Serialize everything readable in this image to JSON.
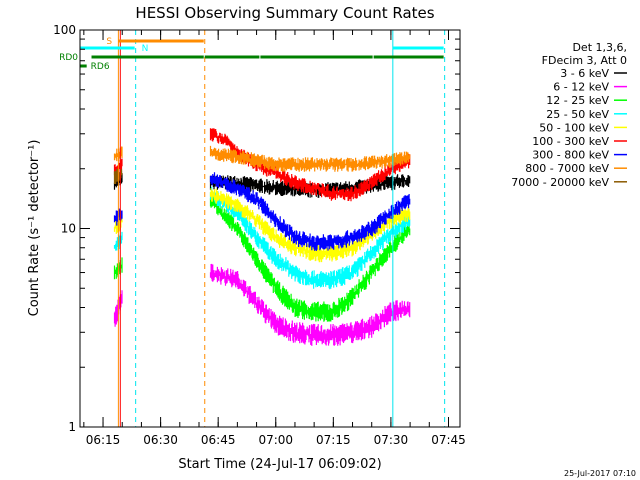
{
  "page": {
    "timestamp": "25-Jul-2017 07:10"
  },
  "chart_data": {
    "type": "line",
    "title": "HESSI Observing Summary Count Rates",
    "xlabel": "Start Time (24-Jul-17 06:09:02)",
    "ylabel": "Count Rate (s⁻¹ detector⁻¹)",
    "y_scale": "log",
    "ylim": [
      1,
      100
    ],
    "xlim": [
      "06:09",
      "07:48"
    ],
    "y_ticks": [
      {
        "value": 1,
        "label": "1"
      },
      {
        "value": 10,
        "label": "10"
      },
      {
        "value": 100,
        "label": "100"
      }
    ],
    "x_ticks": [
      {
        "value": "06:15",
        "label": "06:15"
      },
      {
        "value": "06:30",
        "label": "06:30"
      },
      {
        "value": "06:45",
        "label": "06:45"
      },
      {
        "value": "07:00",
        "label": "07:00"
      },
      {
        "value": "07:15",
        "label": "07:15"
      },
      {
        "value": "07:30",
        "label": "07:30"
      },
      {
        "value": "07:45",
        "label": "07:45"
      }
    ],
    "legend": {
      "placement": "right",
      "header": [
        "Det 1,3,6,",
        "FDecim 3, Att 0"
      ],
      "entries": [
        {
          "label": "3 - 6 keV",
          "color": "#000000"
        },
        {
          "label": "6 - 12 keV",
          "color": "#ff00ff"
        },
        {
          "label": "12 - 25 keV",
          "color": "#00ff00"
        },
        {
          "label": "25 - 50 keV",
          "color": "#00ffff"
        },
        {
          "label": "50 - 100 keV",
          "color": "#ffff00"
        },
        {
          "label": "100 - 300 keV",
          "color": "#ff0000"
        },
        {
          "label": "300 - 800 keV",
          "color": "#0000ff"
        },
        {
          "label": "800 - 7000 keV",
          "color": "#ff8c00"
        },
        {
          "label": "7000 - 20000 keV",
          "color": "#8b5a00"
        }
      ]
    },
    "segments": [
      {
        "start": "06:18",
        "end": "06:20"
      },
      {
        "start": "06:43",
        "end": "07:35"
      }
    ],
    "series": [
      {
        "band": "3 - 6 keV",
        "color": "#000000",
        "points": [
          [
            "06:18",
            17
          ],
          [
            "06:20",
            18
          ],
          [
            "06:43",
            17
          ],
          [
            "06:50",
            17
          ],
          [
            "06:55",
            16.5
          ],
          [
            "07:00",
            16
          ],
          [
            "07:10",
            15.5
          ],
          [
            "07:20",
            16
          ],
          [
            "07:30",
            17
          ],
          [
            "07:35",
            17.5
          ]
        ]
      },
      {
        "band": "6 - 12 keV",
        "color": "#ff00ff",
        "points": [
          [
            "06:18",
            3.5
          ],
          [
            "06:20",
            4.5
          ],
          [
            "06:43",
            6
          ],
          [
            "06:50",
            5.5
          ],
          [
            "06:55",
            4.2
          ],
          [
            "07:00",
            3.3
          ],
          [
            "07:05",
            3.0
          ],
          [
            "07:10",
            2.9
          ],
          [
            "07:15",
            2.9
          ],
          [
            "07:20",
            3.0
          ],
          [
            "07:25",
            3.2
          ],
          [
            "07:30",
            3.8
          ],
          [
            "07:35",
            4.0
          ]
        ]
      },
      {
        "band": "12 - 25 keV",
        "color": "#00ff00",
        "points": [
          [
            "06:18",
            6
          ],
          [
            "06:20",
            6.5
          ],
          [
            "06:43",
            14
          ],
          [
            "06:46",
            12
          ],
          [
            "06:50",
            10
          ],
          [
            "06:55",
            7
          ],
          [
            "07:00",
            5
          ],
          [
            "07:05",
            4
          ],
          [
            "07:10",
            3.8
          ],
          [
            "07:15",
            3.8
          ],
          [
            "07:20",
            4.5
          ],
          [
            "07:25",
            6
          ],
          [
            "07:30",
            8
          ],
          [
            "07:35",
            10
          ]
        ]
      },
      {
        "band": "25 - 50 keV",
        "color": "#00ffff",
        "points": [
          [
            "06:18",
            8
          ],
          [
            "06:20",
            9
          ],
          [
            "06:43",
            15
          ],
          [
            "06:50",
            12
          ],
          [
            "06:55",
            9
          ],
          [
            "07:00",
            7
          ],
          [
            "07:05",
            6
          ],
          [
            "07:10",
            5.5
          ],
          [
            "07:15",
            5.5
          ],
          [
            "07:20",
            6
          ],
          [
            "07:25",
            7.5
          ],
          [
            "07:30",
            9.5
          ],
          [
            "07:35",
            11
          ]
        ]
      },
      {
        "band": "50 - 100 keV",
        "color": "#ffff00",
        "points": [
          [
            "06:18",
            10
          ],
          [
            "06:20",
            11
          ],
          [
            "06:43",
            15
          ],
          [
            "06:50",
            13
          ],
          [
            "06:55",
            11
          ],
          [
            "07:00",
            9
          ],
          [
            "07:05",
            8
          ],
          [
            "07:10",
            7.5
          ],
          [
            "07:15",
            7.5
          ],
          [
            "07:20",
            8
          ],
          [
            "07:25",
            9.5
          ],
          [
            "07:30",
            11
          ],
          [
            "07:35",
            12
          ]
        ]
      },
      {
        "band": "100 - 300 keV",
        "color": "#ff0000",
        "points": [
          [
            "06:18",
            20
          ],
          [
            "06:20",
            21
          ],
          [
            "06:43",
            30
          ],
          [
            "06:47",
            28
          ],
          [
            "06:50",
            24
          ],
          [
            "06:55",
            21
          ],
          [
            "07:00",
            19
          ],
          [
            "07:05",
            17
          ],
          [
            "07:10",
            16
          ],
          [
            "07:15",
            15
          ],
          [
            "07:20",
            15
          ],
          [
            "07:25",
            17
          ],
          [
            "07:30",
            20
          ],
          [
            "07:35",
            22
          ]
        ]
      },
      {
        "band": "300 - 800 keV",
        "color": "#0000ff",
        "points": [
          [
            "06:18",
            11
          ],
          [
            "06:20",
            12
          ],
          [
            "06:43",
            18
          ],
          [
            "06:50",
            16
          ],
          [
            "06:55",
            14
          ],
          [
            "07:00",
            11
          ],
          [
            "07:05",
            9
          ],
          [
            "07:10",
            8.5
          ],
          [
            "07:15",
            8.5
          ],
          [
            "07:20",
            9
          ],
          [
            "07:25",
            10
          ],
          [
            "07:30",
            12
          ],
          [
            "07:35",
            14
          ]
        ]
      },
      {
        "band": "800 - 7000 keV",
        "color": "#ff8c00",
        "points": [
          [
            "06:18",
            23
          ],
          [
            "06:20",
            24
          ],
          [
            "06:43",
            24
          ],
          [
            "06:50",
            23
          ],
          [
            "06:55",
            22
          ],
          [
            "07:00",
            21
          ],
          [
            "07:10",
            21
          ],
          [
            "07:20",
            21
          ],
          [
            "07:30",
            22
          ],
          [
            "07:35",
            23
          ]
        ]
      },
      {
        "band": "7000 - 20000 keV",
        "color": "#8b5a00",
        "points": [
          [
            "06:18",
            18
          ],
          [
            "06:20",
            19
          ]
        ]
      }
    ],
    "annotations": {
      "vertical_lines": [
        {
          "time": "06:19",
          "color": "#ff8c00",
          "style": "solid"
        },
        {
          "time": "06:19.5",
          "color": "#ff0000",
          "style": "solid"
        },
        {
          "time": "06:23.5",
          "color": "#00e5ee",
          "style": "dashed"
        },
        {
          "time": "06:41.5",
          "color": "#ff8c00",
          "style": "dashed"
        },
        {
          "time": "07:30.5",
          "color": "#00e5ee",
          "style": "solid"
        },
        {
          "time": "07:44",
          "color": "#00e5ee",
          "style": "dashed"
        }
      ],
      "flag_bars": [
        {
          "label": "S",
          "color": "#ff8c00",
          "level": 1,
          "ranges": [
            [
              "06:19",
              "06:41.5"
            ]
          ]
        },
        {
          "label": "N",
          "color": "#00ffff",
          "level": 2,
          "ranges": [
            [
              "06:09",
              "06:23.5"
            ],
            [
              "07:30.5",
              "07:44"
            ]
          ]
        },
        {
          "label": "RD0",
          "color": "#008000",
          "level": 3,
          "ranges": [
            [
              "06:12",
              "06:41.5"
            ],
            [
              "06:41.5",
              "06:56"
            ],
            [
              "06:56",
              "07:25.5"
            ],
            [
              "07:25.5",
              "07:44"
            ]
          ]
        },
        {
          "label": "RD6",
          "color": "#008000",
          "level": 4,
          "ranges": [
            [
              "06:09",
              "06:11"
            ]
          ]
        }
      ]
    }
  }
}
